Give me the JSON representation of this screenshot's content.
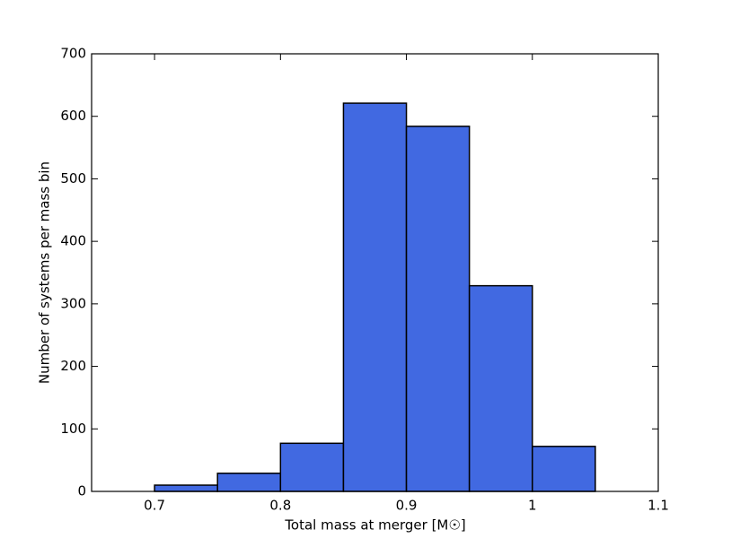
{
  "chart_data": {
    "type": "histogram",
    "xlabel": "Total mass at merger [M☉]",
    "ylabel": "Number of systems per mass bin",
    "bins": [
      0.7,
      0.75,
      0.8,
      0.85,
      0.9,
      0.95,
      1.0,
      1.05
    ],
    "values": [
      10,
      29,
      77,
      621,
      584,
      329,
      72
    ],
    "color": "#4169e1",
    "xlim": [
      0.65,
      1.1
    ],
    "xticks": [
      0.7,
      0.8,
      0.9,
      1.0,
      1.1
    ],
    "ylim": [
      0,
      700
    ],
    "yticks": [
      0,
      100,
      200,
      300,
      400,
      500,
      600,
      700
    ],
    "grid": false
  }
}
